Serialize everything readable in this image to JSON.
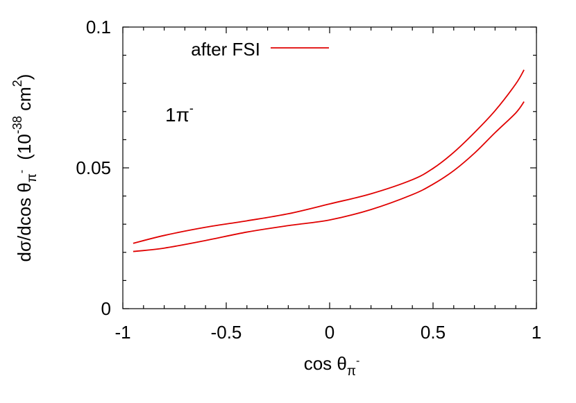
{
  "chart_data": {
    "type": "line",
    "title": "",
    "xlabel": "cos θ",
    "xlabel_sub": "π",
    "xlabel_sup": "-",
    "ylabel": "dσ/dcos θ",
    "ylabel_sub": "π",
    "ylabel_sub_sup": "-",
    "ylabel_unit_open": "(10",
    "ylabel_unit_exp": "-38",
    "ylabel_unit_mid": " cm",
    "ylabel_unit_exp2": "2",
    "ylabel_unit_close": ")",
    "xlim": [
      -1,
      1
    ],
    "ylim": [
      0,
      0.1
    ],
    "xticks": [
      -1,
      -0.5,
      0,
      0.5,
      1
    ],
    "xtick_labels": [
      "-1",
      "-0.5",
      "0",
      "0.5",
      "1"
    ],
    "yticks": [
      0,
      0.05,
      0.1
    ],
    "ytick_labels": [
      "0",
      "0.05",
      "0.1"
    ],
    "grid": false,
    "legend_position": "top-left",
    "annotation": {
      "text": "1π",
      "sup": "-"
    },
    "series": [
      {
        "name": "after FSI",
        "color": "#e00000",
        "x": [
          -0.95,
          -0.8,
          -0.6,
          -0.4,
          -0.2,
          0.0,
          0.2,
          0.4,
          0.5,
          0.6,
          0.7,
          0.8,
          0.9,
          0.94
        ],
        "y": [
          0.0232,
          0.026,
          0.0289,
          0.0312,
          0.0337,
          0.0372,
          0.0408,
          0.0458,
          0.0498,
          0.0555,
          0.0625,
          0.0703,
          0.0798,
          0.0848
        ]
      },
      {
        "name": "",
        "color": "#e00000",
        "x": [
          -0.95,
          -0.8,
          -0.6,
          -0.4,
          -0.2,
          0.0,
          0.2,
          0.4,
          0.5,
          0.6,
          0.7,
          0.8,
          0.9,
          0.94
        ],
        "y": [
          0.0203,
          0.0215,
          0.0242,
          0.0272,
          0.0295,
          0.0315,
          0.0352,
          0.0405,
          0.0442,
          0.049,
          0.0552,
          0.0625,
          0.0695,
          0.0735
        ]
      }
    ]
  }
}
